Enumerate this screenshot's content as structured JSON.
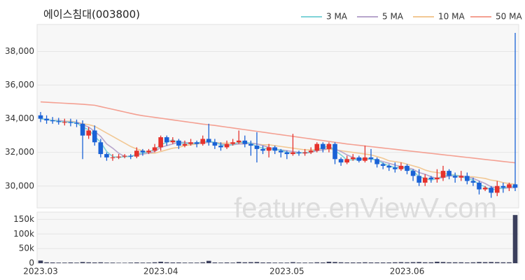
{
  "chart_data": [
    {
      "type": "candlestick",
      "title": "에이스침대(003800)",
      "watermark": "feature.enViewV.com",
      "legend": "top-right",
      "grid": true,
      "up_color": "#e5322d",
      "down_color": "#1a62d6",
      "categories": [
        "2023.03",
        null,
        null,
        null,
        null,
        null,
        null,
        null,
        null,
        null,
        null,
        null,
        null,
        null,
        null,
        null,
        null,
        null,
        null,
        null,
        "2023.04",
        null,
        null,
        null,
        null,
        null,
        null,
        null,
        null,
        null,
        null,
        null,
        null,
        null,
        null,
        null,
        null,
        null,
        null,
        null,
        null,
        "2023.05",
        null,
        null,
        null,
        null,
        null,
        null,
        null,
        null,
        null,
        null,
        null,
        null,
        null,
        null,
        null,
        null,
        null,
        null,
        null,
        "2023.06",
        null,
        null,
        null,
        null,
        null,
        null,
        null,
        null,
        null,
        null,
        null,
        null,
        null,
        null,
        null,
        null,
        null,
        null
      ],
      "open": [
        34200,
        34000,
        33900,
        33850,
        33800,
        33800,
        33750,
        33700,
        33000,
        33300,
        32600,
        31900,
        31700,
        31700,
        31750,
        31800,
        31750,
        32100,
        32000,
        32100,
        32300,
        32900,
        32600,
        32700,
        32400,
        32500,
        32600,
        32500,
        32800,
        32600,
        32400,
        32300,
        32500,
        32600,
        32700,
        32500,
        32400,
        32200,
        32100,
        32300,
        32100,
        32000,
        31900,
        32000,
        31950,
        32000,
        32100,
        32500,
        32200,
        32500,
        31600,
        31400,
        31600,
        31700,
        31500,
        31700,
        31600,
        31300,
        31200,
        31100,
        31000,
        31200,
        30900,
        30600,
        30200,
        30500,
        30400,
        30500,
        30900,
        30600,
        30500,
        30600,
        30300,
        30200,
        29800,
        29900,
        29600,
        30000,
        29900,
        30100
      ],
      "high": [
        34400,
        34200,
        34100,
        34050,
        34000,
        34000,
        33950,
        33900,
        33500,
        33600,
        32800,
        32000,
        31900,
        31900,
        31900,
        31900,
        32300,
        32200,
        32200,
        32500,
        33000,
        33000,
        32900,
        32800,
        32700,
        32800,
        32700,
        33000,
        33700,
        32800,
        32600,
        32700,
        32800,
        33300,
        33000,
        32700,
        33200,
        32400,
        32500,
        32400,
        32200,
        32100,
        33100,
        32100,
        32200,
        32300,
        32600,
        32600,
        32600,
        32600,
        31700,
        31800,
        31900,
        31800,
        32400,
        32200,
        31700,
        31400,
        31300,
        31400,
        31400,
        31300,
        31000,
        31000,
        30700,
        30600,
        31000,
        31200,
        31000,
        30800,
        30900,
        30800,
        30500,
        30300,
        30000,
        30000,
        30300,
        30200,
        30200,
        39100
      ],
      "low": [
        33800,
        33700,
        33700,
        33650,
        33600,
        33550,
        33500,
        31600,
        32800,
        32400,
        31700,
        31500,
        31500,
        31600,
        31650,
        31600,
        31650,
        31800,
        31900,
        32000,
        32100,
        32400,
        32500,
        32200,
        32300,
        32400,
        32300,
        32400,
        32400,
        32200,
        32100,
        32200,
        32400,
        32500,
        32300,
        31800,
        31400,
        31900,
        31700,
        31900,
        31700,
        31600,
        31800,
        31800,
        31800,
        31900,
        32000,
        32000,
        32000,
        31300,
        31200,
        31300,
        31500,
        31400,
        31400,
        31400,
        31100,
        31000,
        30900,
        30800,
        30900,
        30700,
        30300,
        30000,
        30000,
        30200,
        30200,
        30300,
        30400,
        30200,
        30300,
        30100,
        30000,
        29500,
        29700,
        29300,
        29400,
        29600,
        29700,
        29700
      ],
      "close": [
        34000,
        33900,
        33850,
        33800,
        33800,
        33750,
        33700,
        33000,
        33300,
        32600,
        31900,
        31700,
        31700,
        31750,
        31800,
        31750,
        32100,
        32000,
        32100,
        32300,
        32900,
        32600,
        32700,
        32400,
        32500,
        32600,
        32500,
        32800,
        32600,
        32400,
        32300,
        32500,
        32600,
        32700,
        32500,
        32400,
        32200,
        32100,
        32300,
        32100,
        32000,
        31900,
        32000,
        31950,
        32000,
        32100,
        32500,
        32200,
        32500,
        31600,
        31400,
        31600,
        31700,
        31500,
        31700,
        31600,
        31300,
        31200,
        31100,
        31000,
        31200,
        30900,
        30600,
        30200,
        30500,
        30400,
        30500,
        30900,
        30600,
        30500,
        30600,
        30300,
        30200,
        29800,
        29900,
        29600,
        30000,
        29900,
        30100,
        29900
      ],
      "series": [
        {
          "name": "3 MA",
          "color": "#7fd3d8",
          "values": [
            34000,
            33950,
            33900,
            33850,
            33800,
            33800,
            33750,
            33500,
            33350,
            32950,
            32600,
            32050,
            31750,
            31700,
            31750,
            31750,
            31900,
            31950,
            32050,
            32150,
            32450,
            32600,
            32750,
            32550,
            32550,
            32500,
            32550,
            32650,
            32650,
            32600,
            32450,
            32400,
            32450,
            32600,
            32600,
            32550,
            32350,
            32250,
            32200,
            32150,
            32150,
            32000,
            31950,
            31950,
            32000,
            32000,
            32200,
            32250,
            32400,
            32100,
            31850,
            31550,
            31550,
            31600,
            31650,
            31600,
            31550,
            31350,
            31200,
            31100,
            31100,
            31050,
            30900,
            30550,
            30450,
            30350,
            30450,
            30600,
            30650,
            30650,
            30550,
            30450,
            30350,
            30100,
            29950,
            29750,
            29850,
            29850,
            30000,
            29950
          ]
        },
        {
          "name": "5 MA",
          "color": "#b8a6cc",
          "values": [
            34000,
            33950,
            33900,
            33900,
            33850,
            33800,
            33800,
            33650,
            33500,
            33250,
            32950,
            32500,
            32250,
            31950,
            31750,
            31750,
            31850,
            31900,
            31950,
            32050,
            32300,
            32400,
            32500,
            32600,
            32600,
            32550,
            32550,
            32550,
            32600,
            32600,
            32500,
            32450,
            32450,
            32500,
            32500,
            32550,
            32500,
            32400,
            32300,
            32200,
            32150,
            32100,
            32050,
            32000,
            31950,
            32000,
            32100,
            32150,
            32250,
            32200,
            32050,
            31850,
            31700,
            31550,
            31600,
            31600,
            31550,
            31450,
            31350,
            31250,
            31150,
            31100,
            31000,
            30800,
            30700,
            30550,
            30450,
            30500,
            30600,
            30600,
            30600,
            30550,
            30450,
            30300,
            30150,
            29950,
            29900,
            29850,
            29900,
            29900
          ]
        },
        {
          "name": "10 MA",
          "color": "#f2c894",
          "values": [
            34000,
            33950,
            33900,
            33900,
            33850,
            33850,
            33800,
            33700,
            33650,
            33550,
            33350,
            33150,
            32950,
            32750,
            32550,
            32350,
            32200,
            32100,
            31950,
            31950,
            32050,
            32150,
            32250,
            32300,
            32400,
            32450,
            32500,
            32550,
            32600,
            32600,
            32550,
            32550,
            32550,
            32550,
            32550,
            32550,
            32500,
            32450,
            32450,
            32400,
            32350,
            32300,
            32250,
            32200,
            32150,
            32150,
            32150,
            32150,
            32200,
            32150,
            32100,
            32050,
            32000,
            31950,
            31900,
            31850,
            31750,
            31650,
            31500,
            31450,
            31400,
            31300,
            31200,
            31100,
            30950,
            30850,
            30800,
            30750,
            30700,
            30650,
            30600,
            30550,
            30550,
            30500,
            30450,
            30350,
            30300,
            30200,
            30150,
            30100
          ]
        },
        {
          "name": "50 MA",
          "color": "#f4a092",
          "values": [
            35000,
            34980,
            34960,
            34940,
            34920,
            34900,
            34880,
            34860,
            34830,
            34800,
            34720,
            34640,
            34560,
            34480,
            34400,
            34320,
            34240,
            34180,
            34130,
            34080,
            34030,
            33980,
            33930,
            33880,
            33830,
            33780,
            33730,
            33680,
            33640,
            33600,
            33550,
            33500,
            33450,
            33400,
            33350,
            33300,
            33250,
            33200,
            33150,
            33100,
            33050,
            33000,
            32950,
            32900,
            32850,
            32800,
            32750,
            32700,
            32650,
            32600,
            32550,
            32500,
            32460,
            32420,
            32380,
            32340,
            32300,
            32260,
            32220,
            32180,
            32140,
            32100,
            32060,
            32020,
            31980,
            31940,
            31900,
            31860,
            31820,
            31780,
            31740,
            31700,
            31660,
            31620,
            31580,
            31540,
            31500,
            31460,
            31420,
            31380
          ]
        }
      ],
      "ylim": [
        28700,
        39600
      ],
      "yticks": [
        {
          "value": 30000,
          "label": "30,000"
        },
        {
          "value": 32000,
          "label": "32,000"
        },
        {
          "value": 34000,
          "label": "34,000"
        },
        {
          "value": 36000,
          "label": "36,000"
        },
        {
          "value": 38000,
          "label": "38,000"
        }
      ]
    },
    {
      "type": "bar",
      "color": "#3b3f5c",
      "values": [
        9000,
        3000,
        2500,
        2000,
        2000,
        2500,
        2000,
        4000,
        3000,
        2500,
        3000,
        2000,
        2000,
        1500,
        1500,
        2000,
        2500,
        2000,
        2000,
        3000,
        5000,
        3000,
        2500,
        2500,
        2000,
        2000,
        2000,
        3000,
        8000,
        2500,
        2000,
        2500,
        2000,
        4000,
        3000,
        3500,
        4000,
        2500,
        2500,
        2000,
        2000,
        2000,
        3500,
        2000,
        2000,
        2000,
        3000,
        2500,
        5000,
        4000,
        3000,
        2500,
        2500,
        2500,
        3000,
        2500,
        2500,
        2500,
        2500,
        3000,
        3500,
        3000,
        3500,
        4000,
        3000,
        3000,
        5000,
        4000,
        3000,
        3000,
        3000,
        2500,
        3000,
        4000,
        3500,
        4000,
        3500,
        3000,
        3000,
        165000
      ],
      "ylim": [
        0,
        175000
      ],
      "yticks": [
        {
          "value": 0,
          "label": "0"
        },
        {
          "value": 50000,
          "label": "50k"
        },
        {
          "value": 100000,
          "label": "100k"
        },
        {
          "value": 150000,
          "label": "150k"
        }
      ]
    }
  ]
}
